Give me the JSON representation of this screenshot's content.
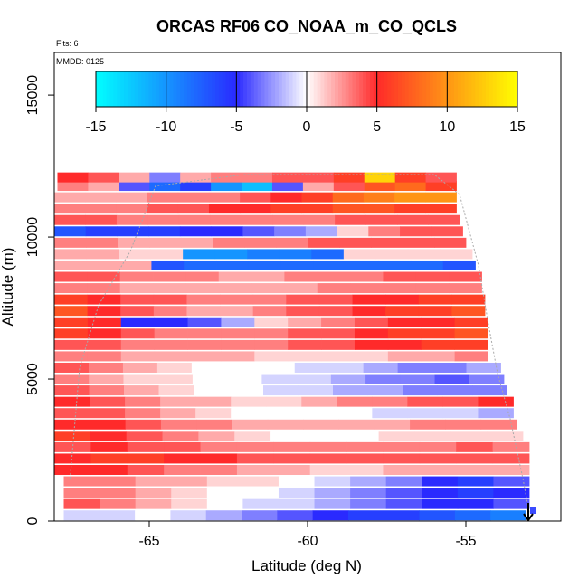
{
  "chart_data": {
    "type": "heatmap",
    "title": "ORCAS RF06 CO_NOAA_m_CO_QCLS",
    "annotation_flights": "Flts: 6",
    "annotation_date": "MMDD: 0125",
    "xlabel": "Latitude (deg N)",
    "ylabel": "Altitude (m)",
    "xlim": [
      -68.0,
      -52.0
    ],
    "ylim": [
      0,
      16500
    ],
    "x_ticks": [
      -65,
      -60,
      -55
    ],
    "x_tick_labels": [
      "-65",
      "-60",
      "-55"
    ],
    "y_ticks": [
      0,
      5000,
      10000,
      15000
    ],
    "y_tick_labels": [
      "0",
      "5000",
      "10000",
      "15000"
    ],
    "colorbar": {
      "min": -15,
      "max": 15,
      "ticks": [
        -15,
        -10,
        -5,
        0,
        5,
        10,
        15
      ],
      "tick_labels": [
        "-15",
        "-10",
        "-5",
        "0",
        "5",
        "10",
        "15"
      ],
      "colors": [
        "#00ffff",
        "#2a2aff",
        "#ffffff",
        "#ff2a2a",
        "#ffff00"
      ]
    },
    "layers": [
      {
        "alt": 200,
        "lat0": -67.7,
        "lat1": -53.1,
        "values": [
          -1,
          -1,
          0,
          -1,
          -2,
          -3,
          -4,
          -5,
          -6,
          -6,
          -7,
          -8,
          -9
        ]
      },
      {
        "alt": 600,
        "lat0": -67.7,
        "lat1": -53.0,
        "values": [
          4,
          3,
          2,
          1,
          0,
          -1,
          -1,
          -2,
          -3,
          -4,
          -5,
          -5,
          -4
        ]
      },
      {
        "alt": 1000,
        "lat0": -67.7,
        "lat1": -53.0,
        "values": [
          3,
          3,
          2,
          1,
          0,
          0,
          -1,
          -2,
          -3,
          -4,
          -5,
          -6,
          -5
        ]
      },
      {
        "alt": 1400,
        "lat0": -67.7,
        "lat1": -53.0,
        "values": [
          3,
          3,
          2,
          2,
          1,
          1,
          0,
          -1,
          -2,
          -3,
          -5,
          -6,
          -4
        ]
      },
      {
        "alt": 1800,
        "lat0": -68.0,
        "lat1": -53.0,
        "values": [
          5,
          5,
          4,
          3,
          3,
          2,
          2,
          1,
          1,
          2,
          2,
          2,
          2
        ]
      },
      {
        "alt": 2200,
        "lat0": -68.0,
        "lat1": -53.0,
        "values": [
          5,
          6,
          6,
          5,
          5,
          4,
          4,
          4,
          4,
          4,
          4,
          4,
          4
        ]
      },
      {
        "alt": 2600,
        "lat0": -68.0,
        "lat1": -53.0,
        "values": [
          4,
          5,
          4,
          4,
          3,
          3,
          3,
          3,
          3,
          3,
          3,
          4,
          3
        ]
      },
      {
        "alt": 3000,
        "lat0": -68.0,
        "lat1": -53.2,
        "values": [
          6,
          5,
          4,
          3,
          2,
          1,
          0,
          0,
          0,
          1,
          1,
          1,
          1
        ]
      },
      {
        "alt": 3400,
        "lat0": -68.0,
        "lat1": -53.4,
        "values": [
          5,
          5,
          4,
          3,
          3,
          2,
          2,
          2,
          2,
          2,
          3,
          3,
          3
        ]
      },
      {
        "alt": 3800,
        "lat0": -68.0,
        "lat1": -53.5,
        "values": [
          4,
          4,
          3,
          2,
          1,
          0,
          0,
          0,
          0,
          -1,
          -1,
          -1,
          -2
        ]
      },
      {
        "alt": 4200,
        "lat0": -68.0,
        "lat1": -53.5,
        "values": [
          5,
          4,
          3,
          2,
          2,
          1,
          1,
          2,
          3,
          3,
          4,
          4,
          5
        ]
      },
      {
        "alt": 4600,
        "lat0": -68.0,
        "lat1": -53.7,
        "values": [
          4,
          3,
          2,
          1,
          0,
          0,
          -1,
          -1,
          -2,
          -2,
          -3,
          -3,
          -3
        ]
      },
      {
        "alt": 5000,
        "lat0": -68.0,
        "lat1": -53.8,
        "values": [
          3,
          2,
          1,
          1,
          0,
          0,
          -1,
          -1,
          -2,
          -3,
          -3,
          -4,
          -3
        ]
      },
      {
        "alt": 5400,
        "lat0": -68.0,
        "lat1": -53.9,
        "values": [
          4,
          3,
          2,
          1,
          0,
          0,
          0,
          -1,
          -1,
          -2,
          -3,
          -3,
          -2
        ]
      },
      {
        "alt": 5800,
        "lat0": -68.0,
        "lat1": -54.3,
        "values": [
          3,
          3,
          2,
          2,
          2,
          2,
          1,
          1,
          1,
          1,
          2,
          2,
          3
        ]
      },
      {
        "alt": 6200,
        "lat0": -68.0,
        "lat1": -54.3,
        "values": [
          4,
          4,
          3,
          3,
          3,
          3,
          3,
          4,
          4,
          5,
          5,
          6,
          6
        ]
      },
      {
        "alt": 6600,
        "lat0": -68.0,
        "lat1": -54.3,
        "values": [
          6,
          5,
          4,
          3,
          3,
          3,
          3,
          4,
          4,
          5,
          6,
          6,
          7
        ]
      },
      {
        "alt": 7000,
        "lat0": -68.0,
        "lat1": -54.3,
        "values": [
          6,
          5,
          -5,
          -5,
          -4,
          -2,
          1,
          2,
          3,
          4,
          5,
          5,
          6
        ]
      },
      {
        "alt": 7400,
        "lat0": -68.0,
        "lat1": -54.4,
        "values": [
          7,
          5,
          4,
          3,
          2,
          2,
          3,
          4,
          4,
          5,
          6,
          6,
          7
        ]
      },
      {
        "alt": 7800,
        "lat0": -68.0,
        "lat1": -54.4,
        "values": [
          6,
          5,
          4,
          4,
          3,
          3,
          3,
          4,
          4,
          5,
          5,
          6,
          6
        ]
      },
      {
        "alt": 8200,
        "lat0": -68.0,
        "lat1": -54.5,
        "values": [
          3,
          3,
          2,
          2,
          2,
          2,
          2,
          2,
          3,
          3,
          3,
          3,
          3
        ]
      },
      {
        "alt": 8600,
        "lat0": -68.0,
        "lat1": -54.5,
        "values": [
          4,
          4,
          3,
          3,
          3,
          2,
          2,
          3,
          3,
          3,
          4,
          4,
          4
        ]
      },
      {
        "alt": 9000,
        "lat0": -68.0,
        "lat1": -54.7,
        "values": [
          2,
          2,
          2,
          -7,
          -8,
          -8,
          -8,
          -8,
          -8,
          -8,
          -8,
          -8,
          -7
        ]
      },
      {
        "alt": 9400,
        "lat0": -68.0,
        "lat1": -54.8,
        "values": [
          2,
          2,
          1,
          1,
          -10,
          -10,
          -9,
          -9,
          -8,
          1,
          1,
          1,
          1
        ]
      },
      {
        "alt": 9800,
        "lat0": -68.0,
        "lat1": -55.0,
        "values": [
          3,
          3,
          2,
          2,
          2,
          3,
          3,
          3,
          4,
          4,
          4,
          4,
          4
        ]
      },
      {
        "alt": 10200,
        "lat0": -68.0,
        "lat1": -55.1,
        "values": [
          -7,
          -6,
          -6,
          -6,
          -5,
          -5,
          -4,
          -3,
          -2,
          1,
          3,
          4,
          4
        ]
      },
      {
        "alt": 10600,
        "lat0": -68.0,
        "lat1": -55.2,
        "values": [
          4,
          4,
          3,
          3,
          3,
          3,
          3,
          3,
          3,
          4,
          4,
          4,
          4
        ]
      },
      {
        "alt": 11000,
        "lat0": -68.0,
        "lat1": -55.3,
        "values": [
          3,
          3,
          3,
          4,
          4,
          5,
          5,
          6,
          6,
          7,
          7,
          6,
          6
        ]
      },
      {
        "alt": 11400,
        "lat0": -68.0,
        "lat1": -55.3,
        "values": [
          2,
          2,
          2,
          3,
          3,
          3,
          4,
          5,
          6,
          8,
          9,
          10,
          10
        ]
      },
      {
        "alt": 11800,
        "lat0": -67.9,
        "lat1": -55.3,
        "values": [
          3,
          2,
          -4,
          -8,
          -6,
          -10,
          -12,
          -4,
          2,
          4,
          7,
          8,
          6
        ]
      },
      {
        "alt": 12100,
        "lat0": -67.9,
        "lat1": -55.3,
        "values": [
          5,
          4,
          2,
          -3,
          2,
          3,
          3,
          4,
          4,
          6,
          13,
          6,
          4
        ]
      }
    ]
  }
}
